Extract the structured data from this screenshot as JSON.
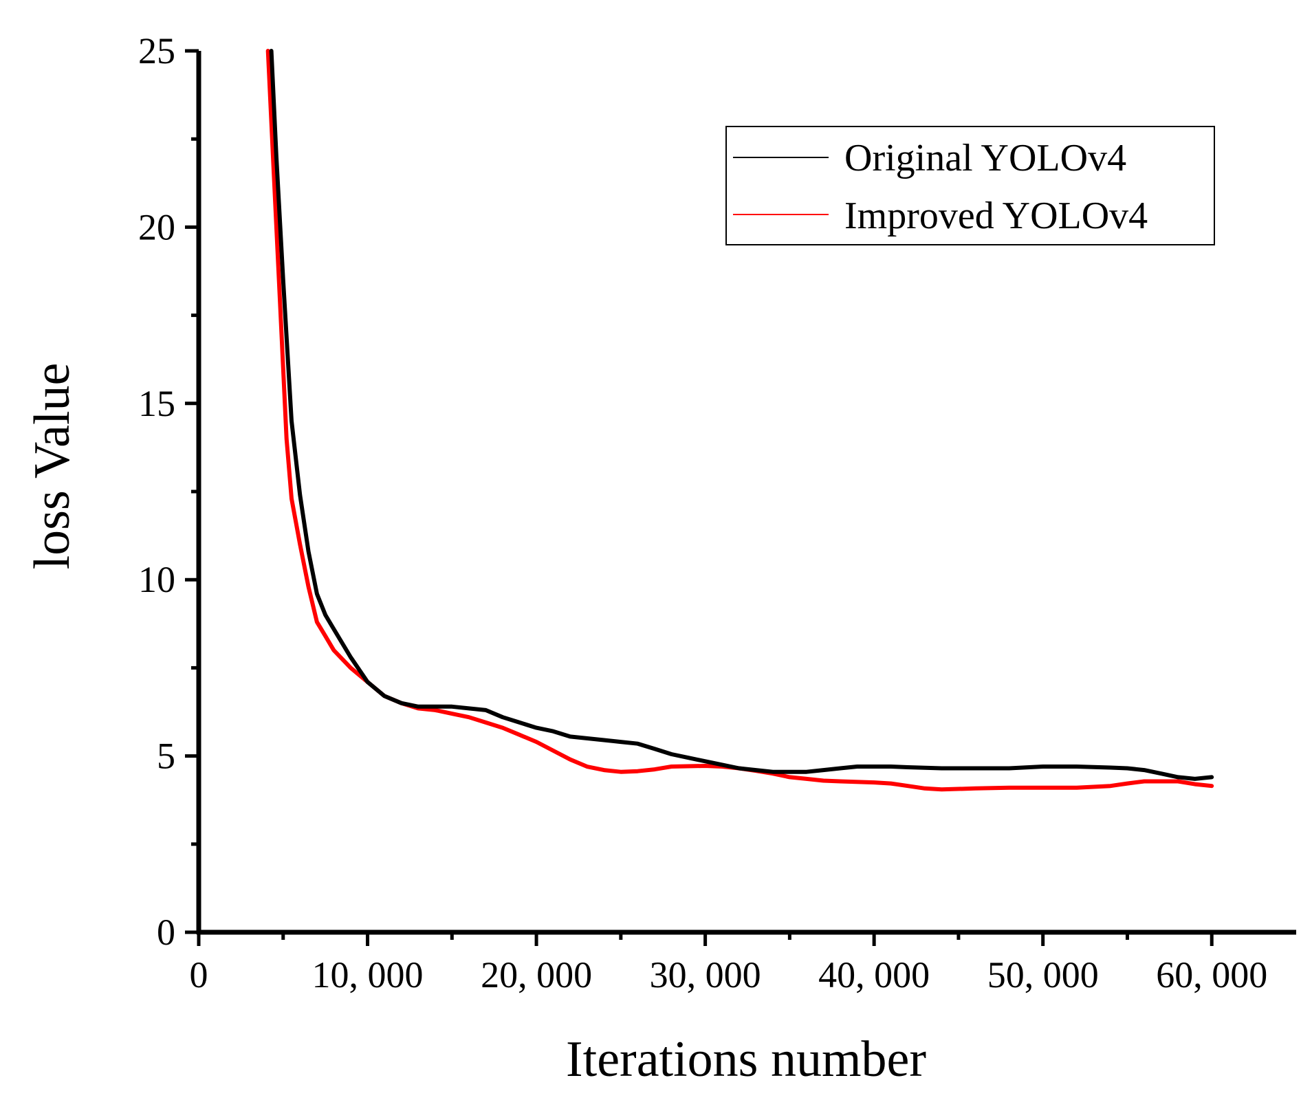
{
  "chart_data": {
    "type": "line",
    "title": "",
    "xlabel": "Iterations number",
    "ylabel": "loss Value",
    "xlim": [
      0,
      65000
    ],
    "ylim": [
      0,
      25
    ],
    "x_ticks": [
      {
        "value": 0,
        "label": "0"
      },
      {
        "value": 10000,
        "label": "10, 000"
      },
      {
        "value": 20000,
        "label": "20, 000"
      },
      {
        "value": 30000,
        "label": "30, 000"
      },
      {
        "value": 40000,
        "label": "40, 000"
      },
      {
        "value": 50000,
        "label": "50, 000"
      },
      {
        "value": 60000,
        "label": "60, 000"
      }
    ],
    "y_ticks": [
      {
        "value": 0,
        "label": "0"
      },
      {
        "value": 5,
        "label": "5"
      },
      {
        "value": 10,
        "label": "10"
      },
      {
        "value": 15,
        "label": "15"
      },
      {
        "value": 20,
        "label": "20"
      },
      {
        "value": 25,
        "label": "25"
      }
    ],
    "grid": false,
    "legend_position": "top-right",
    "series": [
      {
        "name": "Original YOLOv4",
        "color": "#000000",
        "points": [
          [
            4300,
            25.0
          ],
          [
            4600,
            22.0
          ],
          [
            5000,
            18.5
          ],
          [
            5500,
            14.5
          ],
          [
            6000,
            12.4
          ],
          [
            6500,
            10.8
          ],
          [
            7000,
            9.6
          ],
          [
            7500,
            9.0
          ],
          [
            8000,
            8.6
          ],
          [
            9000,
            7.8
          ],
          [
            10000,
            7.1
          ],
          [
            11000,
            6.7
          ],
          [
            12000,
            6.5
          ],
          [
            13000,
            6.4
          ],
          [
            15000,
            6.4
          ],
          [
            16000,
            6.35
          ],
          [
            17000,
            6.3
          ],
          [
            18000,
            6.1
          ],
          [
            19000,
            5.95
          ],
          [
            20000,
            5.8
          ],
          [
            21000,
            5.7
          ],
          [
            22000,
            5.55
          ],
          [
            24000,
            5.45
          ],
          [
            25000,
            5.4
          ],
          [
            26000,
            5.35
          ],
          [
            27000,
            5.2
          ],
          [
            28000,
            5.05
          ],
          [
            29000,
            4.95
          ],
          [
            30000,
            4.85
          ],
          [
            31000,
            4.75
          ],
          [
            32000,
            4.65
          ],
          [
            33000,
            4.6
          ],
          [
            34000,
            4.55
          ],
          [
            36000,
            4.55
          ],
          [
            37000,
            4.6
          ],
          [
            38000,
            4.65
          ],
          [
            39000,
            4.7
          ],
          [
            40000,
            4.7
          ],
          [
            41000,
            4.7
          ],
          [
            42000,
            4.68
          ],
          [
            44000,
            4.65
          ],
          [
            46000,
            4.65
          ],
          [
            48000,
            4.65
          ],
          [
            50000,
            4.7
          ],
          [
            52000,
            4.7
          ],
          [
            54000,
            4.67
          ],
          [
            55000,
            4.65
          ],
          [
            56000,
            4.6
          ],
          [
            57000,
            4.5
          ],
          [
            58000,
            4.4
          ],
          [
            59000,
            4.35
          ],
          [
            60000,
            4.4
          ]
        ]
      },
      {
        "name": "Improved YOLOv4",
        "color": "#ff0000",
        "points": [
          [
            4100,
            25.0
          ],
          [
            4400,
            22.0
          ],
          [
            4800,
            18.0
          ],
          [
            5200,
            14.0
          ],
          [
            5500,
            12.3
          ],
          [
            6000,
            11.0
          ],
          [
            6500,
            9.8
          ],
          [
            7000,
            8.8
          ],
          [
            7500,
            8.4
          ],
          [
            8000,
            8.0
          ],
          [
            9000,
            7.5
          ],
          [
            10000,
            7.1
          ],
          [
            11000,
            6.7
          ],
          [
            12000,
            6.5
          ],
          [
            13000,
            6.35
          ],
          [
            14000,
            6.3
          ],
          [
            15000,
            6.2
          ],
          [
            16000,
            6.1
          ],
          [
            17000,
            5.95
          ],
          [
            18000,
            5.8
          ],
          [
            19000,
            5.6
          ],
          [
            20000,
            5.4
          ],
          [
            21000,
            5.15
          ],
          [
            22000,
            4.9
          ],
          [
            23000,
            4.7
          ],
          [
            24000,
            4.6
          ],
          [
            25000,
            4.55
          ],
          [
            26000,
            4.57
          ],
          [
            27000,
            4.62
          ],
          [
            28000,
            4.7
          ],
          [
            30000,
            4.72
          ],
          [
            31000,
            4.7
          ],
          [
            32000,
            4.65
          ],
          [
            33000,
            4.58
          ],
          [
            34000,
            4.5
          ],
          [
            35000,
            4.4
          ],
          [
            36000,
            4.35
          ],
          [
            37000,
            4.3
          ],
          [
            38000,
            4.28
          ],
          [
            40000,
            4.25
          ],
          [
            41000,
            4.22
          ],
          [
            42000,
            4.15
          ],
          [
            43000,
            4.08
          ],
          [
            44000,
            4.05
          ],
          [
            46000,
            4.08
          ],
          [
            48000,
            4.1
          ],
          [
            50000,
            4.1
          ],
          [
            52000,
            4.1
          ],
          [
            54000,
            4.15
          ],
          [
            55000,
            4.22
          ],
          [
            56000,
            4.28
          ],
          [
            58000,
            4.28
          ],
          [
            59000,
            4.2
          ],
          [
            60000,
            4.15
          ]
        ]
      }
    ]
  }
}
